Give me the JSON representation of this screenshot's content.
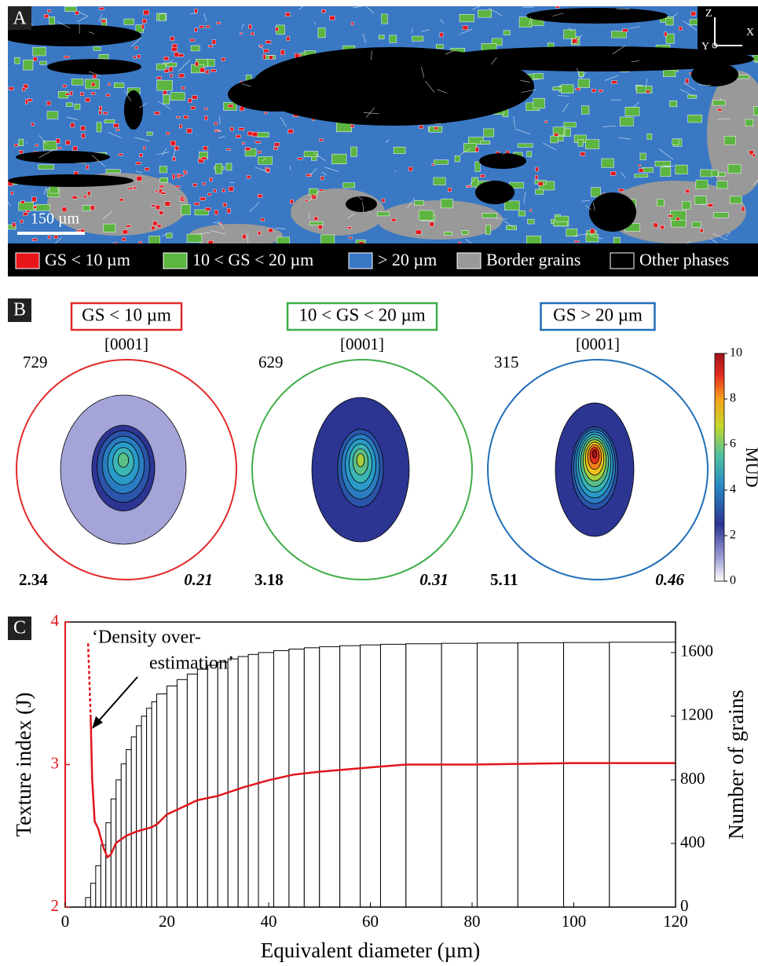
{
  "panel_a": {
    "label": "A",
    "scale_bar": "150 µm",
    "axes": {
      "z": "Z",
      "x": "X",
      "y": "Y"
    },
    "legend": [
      {
        "label": "GS < 10 µm",
        "color": "#e8151b"
      },
      {
        "label": "10 < GS < 20 µm",
        "color": "#5bb540"
      },
      {
        "label": "> 20 µm",
        "color": "#3a78c3"
      },
      {
        "label": "Border grains",
        "color": "#999999"
      },
      {
        "label": "Other phases",
        "color": "#000000"
      }
    ]
  },
  "panel_b": {
    "label": "B",
    "pole": "[0001]",
    "figures": [
      {
        "title": "GS < 10 µm",
        "color": "#e02a2a",
        "n": 729,
        "max": 2.34,
        "j": 0.21
      },
      {
        "title": "10 < GS < 20 µm",
        "color": "#3fae49",
        "n": 629,
        "max": 3.18,
        "j": 0.31
      },
      {
        "title": "GS > 20 µm",
        "color": "#1f6fb8",
        "n": 315,
        "max": 5.11,
        "j": 0.46
      }
    ],
    "colorbar": {
      "label": "MUD",
      "lim": [
        0,
        10
      ],
      "ticks": [
        0,
        2,
        4,
        6,
        8,
        10
      ]
    }
  },
  "chart_data": {
    "type": "histogram",
    "label": "C",
    "annotation": [
      "‘Density over-",
      "estimation’"
    ],
    "x_label": "Equivalent diameter (µm)",
    "y_label": "Texture index (J)",
    "y2_label": "Number of grains",
    "xlim": [
      0,
      120
    ],
    "xticks": [
      0,
      20,
      40,
      60,
      80,
      100,
      120
    ],
    "ylim": [
      2,
      4
    ],
    "yticks": [
      2,
      3,
      4
    ],
    "y_color": "#e0161b",
    "y2lim": [
      0,
      1792
    ],
    "y2ticks": [
      0,
      400,
      800,
      1200,
      1600
    ],
    "bins": [
      4,
      5,
      6,
      7,
      8,
      9,
      10,
      11,
      12,
      13,
      14,
      15,
      16,
      17,
      18,
      20,
      22,
      24,
      26,
      28,
      30,
      32,
      34,
      36,
      38,
      41,
      44,
      47,
      50,
      54,
      58,
      62,
      67,
      74,
      81,
      89,
      98,
      107,
      120
    ],
    "counts": [
      60,
      150,
      260,
      390,
      530,
      680,
      800,
      900,
      990,
      1070,
      1140,
      1200,
      1250,
      1290,
      1340,
      1390,
      1430,
      1465,
      1495,
      1520,
      1540,
      1560,
      1575,
      1588,
      1600,
      1612,
      1622,
      1630,
      1637,
      1643,
      1648,
      1652,
      1655,
      1658,
      1660,
      1662,
      1663,
      1665
    ],
    "axis": "y2",
    "lines": [
      {
        "type": "line",
        "dashed": true,
        "color": "#e0161b",
        "x": [
          4.5,
          5
        ],
        "values": [
          3.85,
          3.35
        ]
      },
      {
        "type": "line",
        "dashed": false,
        "color": "#e0161b",
        "x": [
          5,
          5.3,
          5.8,
          6.5,
          7.5,
          8.3,
          9,
          10,
          12,
          14,
          17,
          18,
          20,
          23,
          26,
          30,
          35,
          40,
          45,
          50,
          60,
          67,
          80,
          100,
          120
        ],
        "values": [
          3.35,
          2.9,
          2.6,
          2.55,
          2.42,
          2.35,
          2.37,
          2.45,
          2.5,
          2.53,
          2.56,
          2.58,
          2.65,
          2.7,
          2.75,
          2.78,
          2.84,
          2.89,
          2.93,
          2.95,
          2.98,
          3.0,
          3.0,
          3.01,
          3.01
        ]
      }
    ]
  }
}
